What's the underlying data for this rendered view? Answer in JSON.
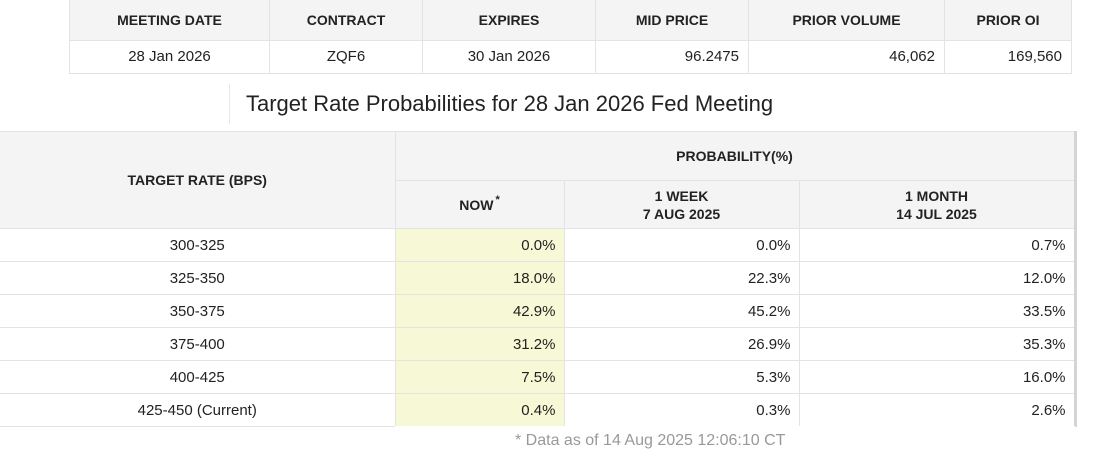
{
  "contract": {
    "headers": [
      "MEETING DATE",
      "CONTRACT",
      "EXPIRES",
      "MID PRICE",
      "PRIOR VOLUME",
      "PRIOR OI"
    ],
    "row": {
      "meeting_date": "28 Jan 2026",
      "contract": "ZQF6",
      "expires": "30 Jan 2026",
      "mid_price": "96.2475",
      "prior_volume": "46,062",
      "prior_oi": "169,560"
    }
  },
  "title": "Target Rate Probabilities for 28 Jan 2026 Fed Meeting",
  "probabilities": {
    "rate_header": "TARGET RATE (BPS)",
    "group_header": "PROBABILITY(%)",
    "now_header": "NOW",
    "now_marker": "*",
    "week_header": "1 WEEK",
    "week_date": "7 AUG 2025",
    "month_header": "1 MONTH",
    "month_date": "14 JUL 2025",
    "rows": [
      {
        "rate": "300-325",
        "now": "0.0%",
        "week": "0.0%",
        "month": "0.7%"
      },
      {
        "rate": "325-350",
        "now": "18.0%",
        "week": "22.3%",
        "month": "12.0%"
      },
      {
        "rate": "350-375",
        "now": "42.9%",
        "week": "45.2%",
        "month": "33.5%"
      },
      {
        "rate": "375-400",
        "now": "31.2%",
        "week": "26.9%",
        "month": "35.3%"
      },
      {
        "rate": "400-425",
        "now": "7.5%",
        "week": "5.3%",
        "month": "16.0%"
      },
      {
        "rate": "425-450 (Current)",
        "now": "0.4%",
        "week": "0.3%",
        "month": "2.6%"
      }
    ]
  },
  "footnote": "* Data as of 14 Aug 2025 12:06:10 CT",
  "colors": {
    "header_bg": "#f4f4f4",
    "now_highlight": "#f7f8d5",
    "border": "#e3e3e3",
    "footnote_text": "#999999"
  }
}
